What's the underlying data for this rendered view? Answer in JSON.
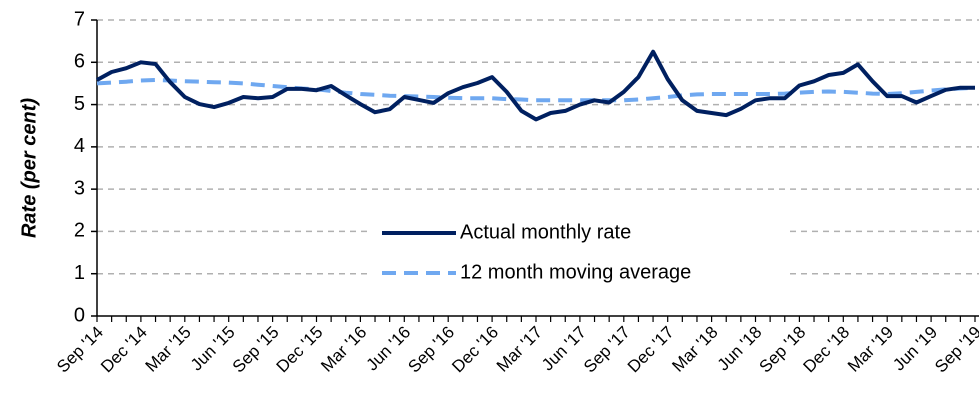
{
  "chart_data": {
    "type": "line",
    "y_label": "Rate (per cent)",
    "categories": [
      "Sep '14",
      null,
      null,
      "Dec '14",
      null,
      null,
      "Mar '15",
      null,
      null,
      "Jun '15",
      null,
      null,
      "Sep '15",
      null,
      null,
      "Dec '15",
      null,
      null,
      "Mar '16",
      null,
      null,
      "Jun '16",
      null,
      null,
      "Sep '16",
      null,
      null,
      "Dec '16",
      null,
      null,
      "Mar '17",
      null,
      null,
      "Jun '17",
      null,
      null,
      "Sep '17",
      null,
      null,
      "Dec '17",
      null,
      null,
      "Mar '18",
      null,
      null,
      "Jun '18",
      null,
      null,
      "Sep '18",
      null,
      null,
      "Dec '18",
      null,
      null,
      "Mar '19",
      null,
      null,
      "Jun '19",
      null,
      null,
      "Sep '19"
    ],
    "series": [
      {
        "name": "Actual monthly rate",
        "color": "#002060",
        "dash": false,
        "values": [
          5.58,
          5.77,
          5.86,
          6.0,
          5.96,
          5.53,
          5.18,
          5.01,
          4.94,
          5.04,
          5.18,
          5.15,
          5.18,
          5.37,
          5.37,
          5.34,
          5.44,
          5.22,
          5.01,
          4.82,
          4.89,
          5.18,
          5.11,
          5.04,
          5.27,
          5.41,
          5.51,
          5.65,
          5.3,
          4.85,
          4.65,
          4.8,
          4.85,
          5.0,
          5.1,
          5.05,
          5.3,
          5.65,
          6.25,
          5.6,
          5.1,
          4.85,
          4.8,
          4.75,
          4.9,
          5.1,
          5.15,
          5.15,
          5.45,
          5.55,
          5.7,
          5.75,
          5.95,
          5.55,
          5.2,
          5.2,
          5.05,
          5.2,
          5.35,
          5.4,
          5.4
        ]
      },
      {
        "name": "12 month moving average",
        "color": "#6fa8f0",
        "dash": true,
        "values": [
          5.5,
          5.52,
          5.54,
          5.57,
          5.58,
          5.57,
          5.55,
          5.54,
          5.53,
          5.52,
          5.5,
          5.47,
          5.44,
          5.41,
          5.38,
          5.36,
          5.32,
          5.28,
          5.25,
          5.23,
          5.21,
          5.2,
          5.19,
          5.18,
          5.16,
          5.15,
          5.15,
          5.15,
          5.13,
          5.12,
          5.1,
          5.1,
          5.1,
          5.1,
          5.1,
          5.1,
          5.1,
          5.12,
          5.15,
          5.18,
          5.22,
          5.24,
          5.25,
          5.25,
          5.25,
          5.25,
          5.25,
          5.26,
          5.28,
          5.3,
          5.31,
          5.3,
          5.28,
          5.26,
          5.25,
          5.27,
          5.3,
          5.33,
          5.36,
          5.38,
          5.4
        ]
      }
    ],
    "ylim": [
      0,
      7
    ],
    "yticks": [
      0,
      1,
      2,
      3,
      4,
      5,
      6,
      7
    ],
    "grid": true,
    "legend": "center"
  }
}
